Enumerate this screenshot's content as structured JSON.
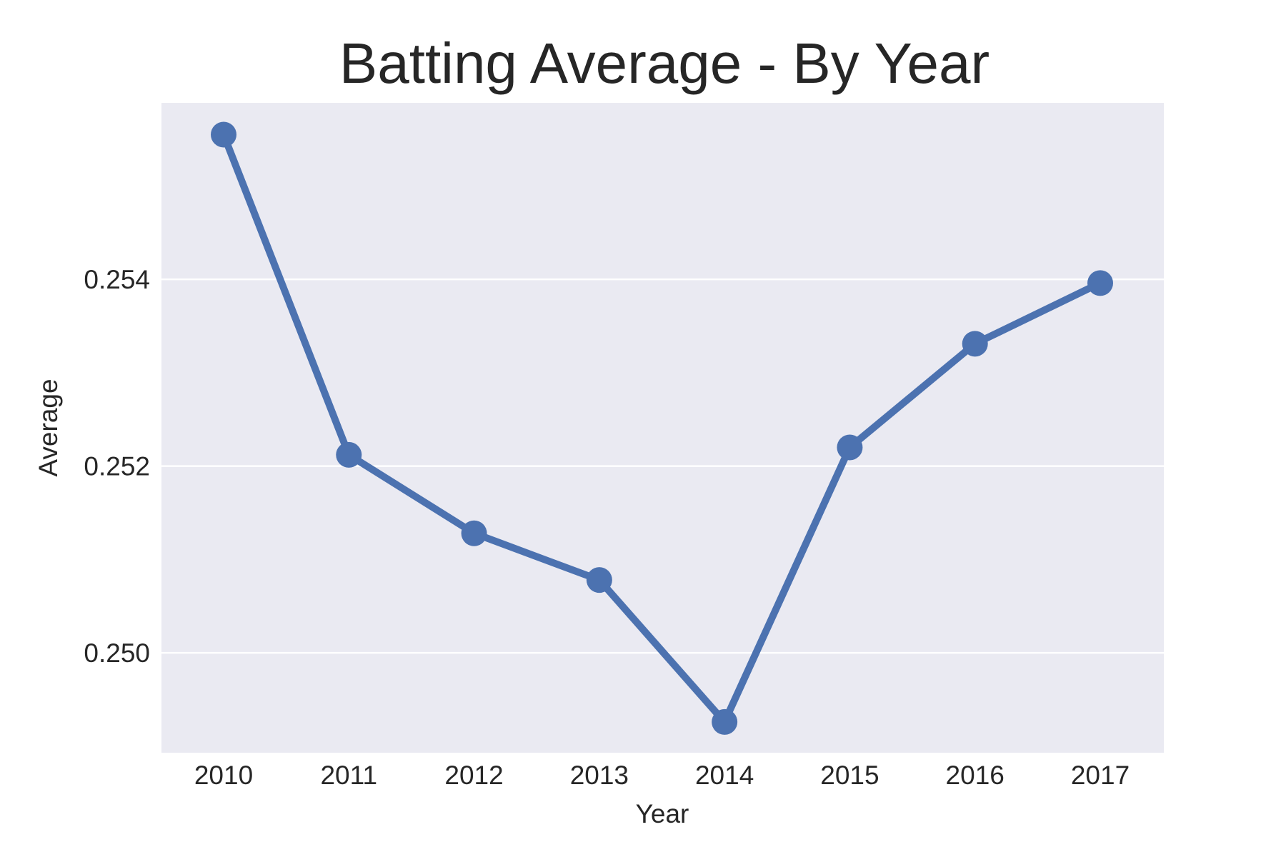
{
  "chart_data": {
    "type": "line",
    "title": "Batting Average - By Year",
    "xlabel": "Year",
    "ylabel": "Average",
    "categories": [
      "2010",
      "2011",
      "2012",
      "2013",
      "2014",
      "2015",
      "2016",
      "2017"
    ],
    "series": [
      {
        "values": [
          0.25555,
          0.25212,
          0.25128,
          0.25078,
          0.24926,
          0.2522,
          0.25331,
          0.25396
        ]
      }
    ],
    "ylim": [
      0.24893,
      0.25589
    ],
    "yticks": [
      "0.250",
      "0.252",
      "0.254"
    ],
    "ytick_values": [
      0.25,
      0.252,
      0.254
    ],
    "grid": "horizontal",
    "legend": "none",
    "colors": {
      "line": "#4c72b0",
      "plot_background": "#eaeaf2",
      "grid": "#ffffff",
      "text": "#262626"
    }
  }
}
